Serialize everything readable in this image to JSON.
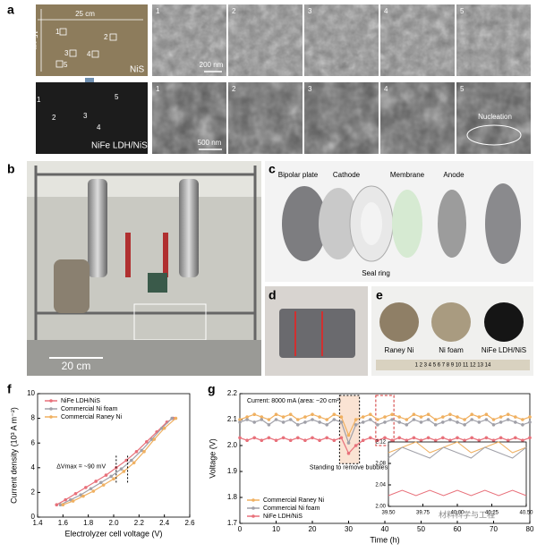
{
  "panel_a": {
    "letter": "a",
    "width_label": "25 cm",
    "height_label": "15 cm",
    "nis_spots": [
      "1",
      "2",
      "3",
      "4",
      "5"
    ],
    "nis_label": "NiS",
    "nife_spots": [
      "1",
      "2",
      "3",
      "4",
      "5"
    ],
    "nife_label": "NiFe LDH/NiS",
    "sem_top": [
      "1",
      "2",
      "3",
      "4",
      "5"
    ],
    "sem_bottom": [
      "1",
      "2",
      "3",
      "4",
      "5"
    ],
    "scale_top": "200 nm",
    "scale_bottom": "500 nm",
    "nucleation": "Nucleation"
  },
  "panel_b": {
    "letter": "b",
    "scale": "20 cm"
  },
  "panel_c": {
    "letter": "c",
    "parts": [
      "Bipolar plate",
      "Cathode",
      "Membrane",
      "Anode"
    ],
    "seal": "Seal ring"
  },
  "panel_d": {
    "letter": "d"
  },
  "panel_e": {
    "letter": "e",
    "samples": [
      "Raney Ni",
      "Ni foam",
      "NiFe LDH/NiS"
    ],
    "ruler": "1 2 3 4 5 6 7 8 9 10 11 12 13 14"
  },
  "panel_f": {
    "letter": "f"
  },
  "panel_g": {
    "letter": "g"
  },
  "watermark": "材料科学与工程",
  "chart_data": [
    {
      "type": "line",
      "xlabel": "Electrolyzer cell voltage (V)",
      "ylabel": "Current density (10³ A m⁻²)",
      "xlim": [
        1.4,
        2.6
      ],
      "xticks": [
        1.4,
        1.6,
        1.8,
        {
          "value": 2,
          "label": "2.0"
        },
        2.2,
        2.4,
        2.6
      ],
      "ylim": [
        0,
        10
      ],
      "yticks": [
        0,
        2,
        4,
        6,
        8,
        10
      ],
      "markers": true,
      "legend": "upper left",
      "annotation": "ΔVmax = ~90 mV",
      "series": [
        {
          "name": "NiFe LDH/NiS",
          "color": "#e8707a",
          "x": [
            1.55,
            1.62,
            1.7,
            1.78,
            1.86,
            1.94,
            2.02,
            2.1,
            2.18,
            2.26,
            2.34,
            2.42,
            2.47
          ],
          "values": [
            1.0,
            1.4,
            1.9,
            2.4,
            2.9,
            3.4,
            4.0,
            4.6,
            5.3,
            6.1,
            6.9,
            7.7,
            8.0
          ]
        },
        {
          "name": "Commercial Ni foam",
          "color": "#a0a0a8",
          "x": [
            1.58,
            1.66,
            1.74,
            1.82,
            1.9,
            1.98,
            2.06,
            2.14,
            2.22,
            2.3,
            2.38,
            2.46
          ],
          "values": [
            1.0,
            1.4,
            1.8,
            2.3,
            2.8,
            3.3,
            3.9,
            4.6,
            5.4,
            6.3,
            7.2,
            8.0
          ]
        },
        {
          "name": "Commercial Raney Ni",
          "color": "#f0b060",
          "x": [
            1.6,
            1.68,
            1.76,
            1.84,
            1.92,
            2.0,
            2.08,
            2.16,
            2.24,
            2.32,
            2.4,
            2.49
          ],
          "values": [
            1.0,
            1.3,
            1.7,
            2.1,
            2.6,
            3.1,
            3.7,
            4.4,
            5.3,
            6.3,
            7.2,
            8.0
          ]
        }
      ]
    },
    {
      "type": "line",
      "xlabel": "Time (h)",
      "ylabel": "Voltage (V)",
      "xlim": [
        0,
        80
      ],
      "xticks": [
        0,
        10,
        20,
        30,
        40,
        50,
        60,
        70,
        80
      ],
      "ylim": [
        1.7,
        2.2
      ],
      "yticks": [
        1.7,
        1.8,
        1.9,
        {
          "value": 2,
          "label": "2.0"
        },
        2.1,
        2.2
      ],
      "markers": true,
      "legend": "lower left",
      "annotations": [
        "Current: 8000 mA (area: ~20 cm²)",
        "Standing to remove bubbles"
      ],
      "x": [
        0,
        2,
        4,
        6,
        8,
        10,
        12,
        14,
        16,
        18,
        20,
        22,
        24,
        26,
        28,
        30,
        32,
        34,
        36,
        38,
        40,
        42,
        44,
        46,
        48,
        50,
        52,
        54,
        56,
        58,
        60,
        62,
        64,
        66,
        68,
        70,
        72,
        74,
        76,
        78,
        80
      ],
      "series": [
        {
          "name": "Commercial Raney Ni",
          "color": "#f0b060",
          "values": [
            2.1,
            2.11,
            2.12,
            2.11,
            2.1,
            2.12,
            2.11,
            2.12,
            2.1,
            2.11,
            2.12,
            2.11,
            2.1,
            2.12,
            2.11,
            2.04,
            2.1,
            2.11,
            2.12,
            2.1,
            2.11,
            2.12,
            2.11,
            2.1,
            2.12,
            2.11,
            2.12,
            2.1,
            2.11,
            2.12,
            2.11,
            2.1,
            2.12,
            2.11,
            2.12,
            2.1,
            2.11,
            2.12,
            2.11,
            2.1,
            2.11
          ]
        },
        {
          "name": "Commercial Ni foam",
          "color": "#a0a0a8",
          "values": [
            2.09,
            2.1,
            2.09,
            2.1,
            2.08,
            2.1,
            2.09,
            2.1,
            2.08,
            2.09,
            2.1,
            2.09,
            2.08,
            2.1,
            2.09,
            2.01,
            2.08,
            2.09,
            2.1,
            2.08,
            2.09,
            2.1,
            2.09,
            2.08,
            2.1,
            2.09,
            2.1,
            2.08,
            2.09,
            2.1,
            2.09,
            2.08,
            2.1,
            2.09,
            2.1,
            2.08,
            2.09,
            2.1,
            2.09,
            2.08,
            2.09
          ]
        },
        {
          "name": "NiFe LDH/NiS",
          "color": "#e8707a",
          "values": [
            2.03,
            2.02,
            2.03,
            2.02,
            2.03,
            2.02,
            2.03,
            2.02,
            2.03,
            2.02,
            2.03,
            2.02,
            2.03,
            2.02,
            2.03,
            1.97,
            2.0,
            2.02,
            2.03,
            2.02,
            2.03,
            2.02,
            2.03,
            2.02,
            2.03,
            2.02,
            2.03,
            2.02,
            2.03,
            2.02,
            2.03,
            2.02,
            2.03,
            2.02,
            2.03,
            2.02,
            2.03,
            2.02,
            2.03,
            2.02,
            2.03
          ]
        }
      ]
    },
    {
      "type": "line",
      "xlim": [
        39.5,
        40.5
      ],
      "xticks": [
        {
          "value": 39.5,
          "label": "39.50"
        },
        {
          "value": 39.75,
          "label": "39.75"
        },
        {
          "value": 40,
          "label": "40.00"
        },
        {
          "value": 40.25,
          "label": "40.25"
        },
        {
          "value": 40.5,
          "label": "40.50"
        }
      ],
      "ylim": [
        2,
        2.12
      ],
      "yticks": [
        {
          "value": 2,
          "label": "2.00"
        },
        2.04,
        2.08,
        2.12
      ],
      "markers": false,
      "x": [
        39.5,
        39.6,
        39.7,
        39.8,
        39.9,
        40.0,
        40.1,
        40.2,
        40.3,
        40.4,
        40.5
      ],
      "series": [
        {
          "color": "#f0b060",
          "values": [
            2.1,
            2.11,
            2.12,
            2.1,
            2.11,
            2.12,
            2.1,
            2.11,
            2.12,
            2.1,
            2.11
          ]
        },
        {
          "color": "#a0a0a8",
          "values": [
            2.09,
            2.11,
            2.1,
            2.09,
            2.11,
            2.1,
            2.09,
            2.11,
            2.1,
            2.09,
            2.11
          ]
        },
        {
          "color": "#e8707a",
          "values": [
            2.02,
            2.03,
            2.02,
            2.03,
            2.02,
            2.03,
            2.02,
            2.03,
            2.02,
            2.03,
            2.02
          ]
        }
      ]
    }
  ]
}
